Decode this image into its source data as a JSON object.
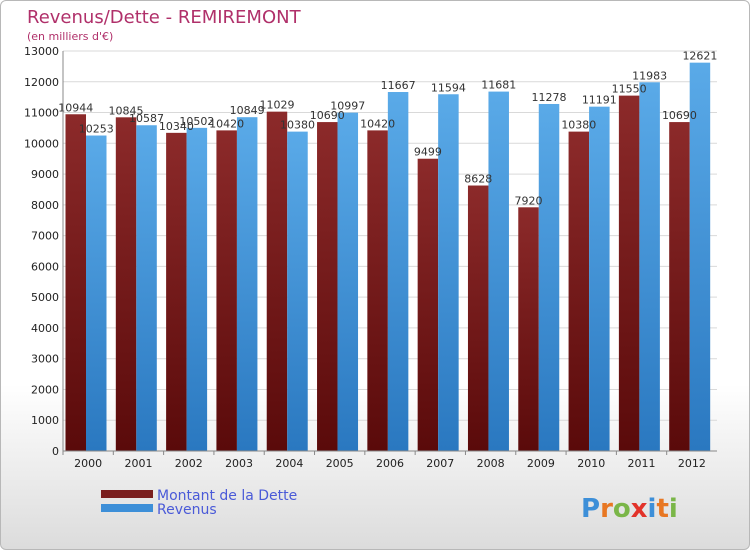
{
  "chart_data": {
    "type": "bar",
    "title": "Revenus/Dette - REMIREMONT",
    "subtitle": "(en milliers d'€)",
    "categories": [
      "2000",
      "2001",
      "2002",
      "2003",
      "2004",
      "2005",
      "2006",
      "2007",
      "2008",
      "2009",
      "2010",
      "2011",
      "2012"
    ],
    "series": [
      {
        "name": "Montant de la Dette",
        "color": "#7a1e1e",
        "values": [
          10944,
          10845,
          10340,
          10420,
          11029,
          10690,
          10420,
          9499,
          8628,
          7920,
          10380,
          11550,
          10690
        ],
        "labels": [
          "10944",
          "10845",
          "10340",
          "10420",
          "11029",
          "10690",
          "10420",
          "9499",
          "8628",
          "7920",
          "10380",
          "11550",
          "10690"
        ]
      },
      {
        "name": "Revenus",
        "color": "#3d8fd8",
        "values": [
          10253,
          10587,
          10502,
          10849,
          10380,
          10997,
          11667,
          11594,
          11681,
          11278,
          11191,
          11983,
          12621
        ],
        "labels": [
          "10253",
          "10587",
          "10502",
          "10849",
          "10380",
          "10997",
          "11667",
          "11594",
          "11681",
          "11278",
          "11191",
          "11983",
          "12621"
        ]
      }
    ],
    "yticks": [
      "0",
      "1000",
      "2000",
      "3000",
      "4000",
      "5000",
      "6000",
      "7000",
      "8000",
      "9000",
      "10000",
      "11000",
      "12000",
      "13000"
    ],
    "ylim": [
      0,
      13000
    ],
    "grid": true,
    "legend_position": "bottom-left"
  },
  "logo": {
    "text": "Proxiti",
    "letter_colors": [
      "#3d8fd8",
      "#e87722",
      "#7ab648",
      "#e2332a",
      "#3d8fd8",
      "#e87722",
      "#7ab648"
    ]
  }
}
